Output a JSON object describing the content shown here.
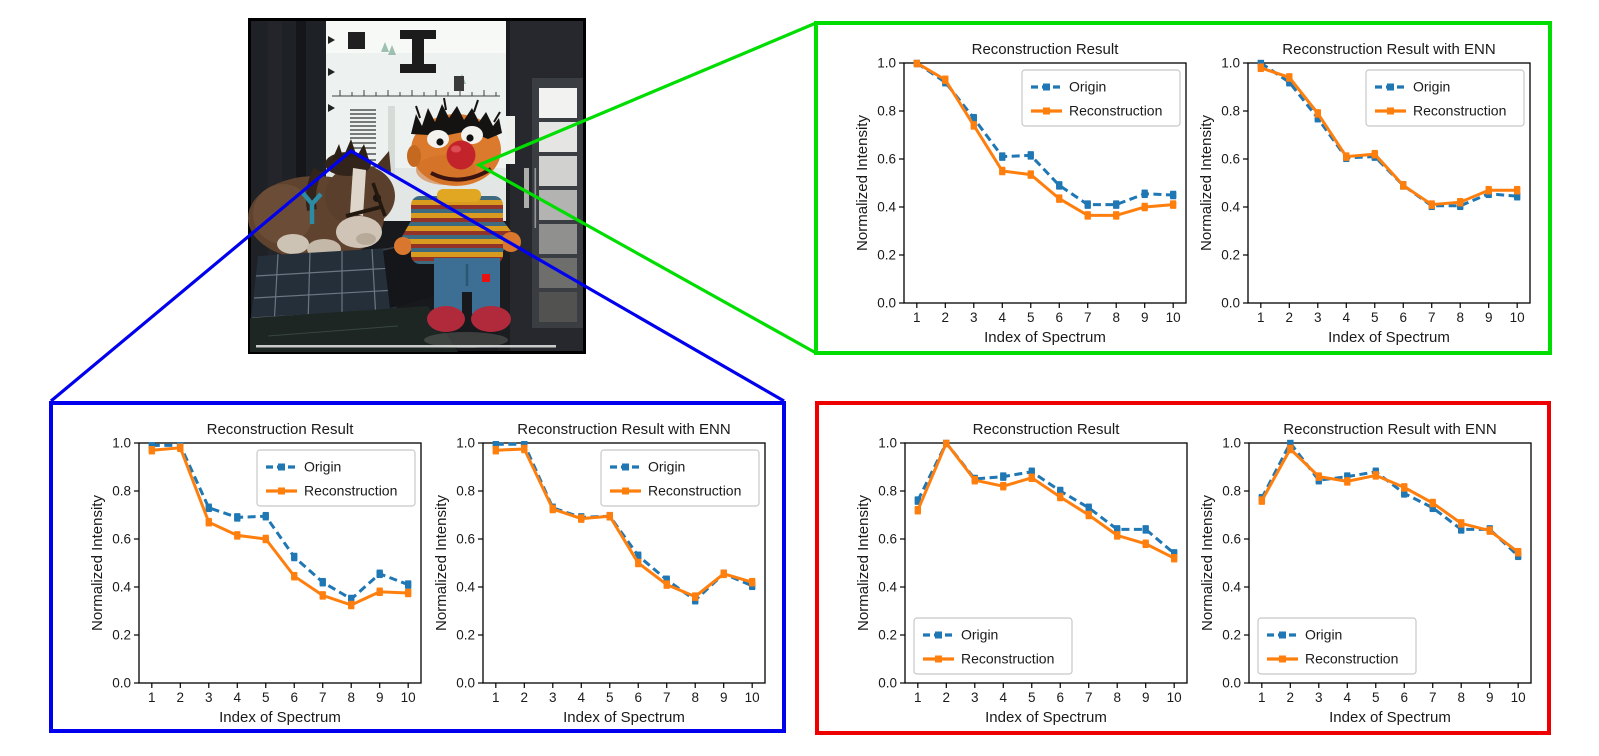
{
  "photo": {
    "objects": [
      "ernie-doll",
      "plush-horse",
      "resolution-test-chart",
      "grayscale-color-checker",
      "checkered-cushion",
      "dark-slate",
      "red-sample-marker"
    ]
  },
  "colors": {
    "green_box": "#00dd00",
    "blue_box": "#0000ee",
    "red_box": "#ee0000",
    "origin": "#1f77b4",
    "reconstruction": "#ff7f0e"
  },
  "panels": [
    {
      "id": "green",
      "border_color": "#00dd00",
      "chart_indices": [
        0,
        1
      ]
    },
    {
      "id": "blue",
      "border_color": "#0000ee",
      "chart_indices": [
        2,
        3
      ]
    },
    {
      "id": "red",
      "border_color": "#ee0000",
      "chart_indices": [
        4,
        5
      ]
    }
  ],
  "chart_data": [
    {
      "id": "green-left",
      "box": "green",
      "type": "line",
      "title": "Reconstruction Result",
      "xlabel": "Index of Spectrum",
      "ylabel": "Normalized Intensity",
      "x": [
        1,
        2,
        3,
        4,
        5,
        6,
        7,
        8,
        9,
        10
      ],
      "ylim": [
        0.0,
        1.0
      ],
      "yticks": [
        0.0,
        0.2,
        0.4,
        0.6,
        0.8,
        1.0
      ],
      "legend_position": "upper-right",
      "series": [
        {
          "name": "Origin",
          "color": "#1f77b4",
          "style": "dashed",
          "marker": "square",
          "values": [
            1.0,
            0.92,
            0.77,
            0.61,
            0.615,
            0.49,
            0.41,
            0.41,
            0.455,
            0.45
          ]
        },
        {
          "name": "Reconstruction",
          "color": "#ff7f0e",
          "style": "solid",
          "marker": "square",
          "values": [
            1.0,
            0.93,
            0.74,
            0.55,
            0.535,
            0.435,
            0.365,
            0.365,
            0.4,
            0.41
          ]
        }
      ]
    },
    {
      "id": "green-right",
      "box": "green",
      "type": "line",
      "title": "Reconstruction Result with ENN",
      "xlabel": "Index of Spectrum",
      "ylabel": "Normalized Intensity",
      "x": [
        1,
        2,
        3,
        4,
        5,
        6,
        7,
        8,
        9,
        10
      ],
      "ylim": [
        0.0,
        1.0
      ],
      "yticks": [
        0.0,
        0.2,
        0.4,
        0.6,
        0.8,
        1.0
      ],
      "legend_position": "upper-right",
      "series": [
        {
          "name": "Origin",
          "color": "#1f77b4",
          "style": "dashed",
          "marker": "square",
          "values": [
            1.0,
            0.92,
            0.77,
            0.605,
            0.61,
            0.49,
            0.405,
            0.405,
            0.455,
            0.445
          ]
        },
        {
          "name": "Reconstruction",
          "color": "#ff7f0e",
          "style": "solid",
          "marker": "square",
          "values": [
            0.98,
            0.94,
            0.79,
            0.61,
            0.62,
            0.49,
            0.41,
            0.42,
            0.47,
            0.47
          ]
        }
      ]
    },
    {
      "id": "blue-left",
      "box": "blue",
      "type": "line",
      "title": "Reconstruction Result",
      "xlabel": "Index of Spectrum",
      "ylabel": "Normalized Intensity",
      "x": [
        1,
        2,
        3,
        4,
        5,
        6,
        7,
        8,
        9,
        10
      ],
      "ylim": [
        0.0,
        1.0
      ],
      "yticks": [
        0.0,
        0.2,
        0.4,
        0.6,
        0.8,
        1.0
      ],
      "legend_position": "upper-right",
      "series": [
        {
          "name": "Origin",
          "color": "#1f77b4",
          "style": "dashed",
          "marker": "square",
          "values": [
            0.99,
            0.99,
            0.73,
            0.69,
            0.695,
            0.525,
            0.42,
            0.35,
            0.455,
            0.41
          ]
        },
        {
          "name": "Reconstruction",
          "color": "#ff7f0e",
          "style": "solid",
          "marker": "square",
          "values": [
            0.97,
            0.98,
            0.67,
            0.615,
            0.6,
            0.445,
            0.365,
            0.325,
            0.38,
            0.375
          ]
        }
      ]
    },
    {
      "id": "blue-right",
      "box": "blue",
      "type": "line",
      "title": "Reconstruction Result with ENN",
      "xlabel": "Index of Spectrum",
      "ylabel": "Normalized Intensity",
      "x": [
        1,
        2,
        3,
        4,
        5,
        6,
        7,
        8,
        9,
        10
      ],
      "ylim": [
        0.0,
        1.0
      ],
      "yticks": [
        0.0,
        0.2,
        0.4,
        0.6,
        0.8,
        1.0
      ],
      "legend_position": "upper-right",
      "series": [
        {
          "name": "Origin",
          "color": "#1f77b4",
          "style": "dashed",
          "marker": "square",
          "values": [
            0.995,
            0.995,
            0.73,
            0.69,
            0.695,
            0.53,
            0.43,
            0.345,
            0.455,
            0.405
          ]
        },
        {
          "name": "Reconstruction",
          "color": "#ff7f0e",
          "style": "solid",
          "marker": "square",
          "values": [
            0.97,
            0.975,
            0.725,
            0.685,
            0.695,
            0.5,
            0.41,
            0.36,
            0.455,
            0.42
          ]
        }
      ]
    },
    {
      "id": "red-left",
      "box": "red",
      "type": "line",
      "title": "Reconstruction Result",
      "xlabel": "Index of Spectrum",
      "ylabel": "Normalized Intensity",
      "x": [
        1,
        2,
        3,
        4,
        5,
        6,
        7,
        8,
        9,
        10
      ],
      "ylim": [
        0.0,
        1.0
      ],
      "yticks": [
        0.0,
        0.2,
        0.4,
        0.6,
        0.8,
        1.0
      ],
      "legend_position": "lower-left",
      "series": [
        {
          "name": "Origin",
          "color": "#1f77b4",
          "style": "dashed",
          "marker": "square",
          "values": [
            0.76,
            1.0,
            0.85,
            0.86,
            0.88,
            0.8,
            0.73,
            0.64,
            0.64,
            0.54
          ]
        },
        {
          "name": "Reconstruction",
          "color": "#ff7f0e",
          "style": "solid",
          "marker": "square",
          "values": [
            0.72,
            1.0,
            0.845,
            0.82,
            0.855,
            0.775,
            0.7,
            0.615,
            0.58,
            0.52
          ]
        }
      ]
    },
    {
      "id": "red-right",
      "box": "red",
      "type": "line",
      "title": "Reconstruction Result with ENN",
      "xlabel": "Index of Spectrum",
      "ylabel": "Normalized Intensity",
      "x": [
        1,
        2,
        3,
        4,
        5,
        6,
        7,
        8,
        9,
        10
      ],
      "ylim": [
        0.0,
        1.0
      ],
      "yticks": [
        0.0,
        0.2,
        0.4,
        0.6,
        0.8,
        1.0
      ],
      "legend_position": "lower-left",
      "series": [
        {
          "name": "Origin",
          "color": "#1f77b4",
          "style": "dashed",
          "marker": "square",
          "values": [
            0.77,
            1.0,
            0.845,
            0.86,
            0.88,
            0.79,
            0.73,
            0.64,
            0.64,
            0.53
          ]
        },
        {
          "name": "Reconstruction",
          "color": "#ff7f0e",
          "style": "solid",
          "marker": "square",
          "values": [
            0.76,
            0.975,
            0.86,
            0.84,
            0.865,
            0.815,
            0.75,
            0.665,
            0.635,
            0.545
          ]
        }
      ]
    }
  ]
}
